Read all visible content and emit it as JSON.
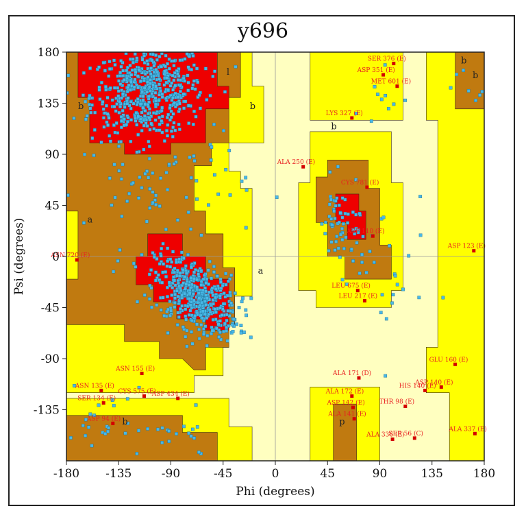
{
  "chart_data": {
    "type": "scatter",
    "title": "y696",
    "xlabel": "Phi (degrees)",
    "ylabel": "Psi (degrees)",
    "xlim": [
      -180,
      180
    ],
    "ylim": [
      -180,
      180
    ],
    "xticks": [
      -180,
      -135,
      -90,
      -45,
      0,
      45,
      90,
      135,
      180
    ],
    "yticks": [
      180,
      135,
      90,
      45,
      0,
      -45,
      -90,
      -135
    ],
    "grid": false,
    "colors": {
      "core": "#ee0000",
      "allowed": "#c07a10",
      "generous": "#ffff00",
      "outer": "#ffffc0",
      "point": "#49b8e6",
      "outlier": "#d40000",
      "outlier_label": "#e82020"
    },
    "region_labels": [
      "b",
      "a",
      "b",
      "b",
      "b",
      "b",
      "l",
      "b",
      "a",
      "p"
    ],
    "outliers": [
      {
        "label": "SER 376 (E)",
        "phi": 102,
        "psi": 170
      },
      {
        "label": "ASP 351 (E)",
        "phi": 93,
        "psi": 160
      },
      {
        "label": "MET 601 (E)",
        "phi": 105,
        "psi": 150
      },
      {
        "label": "LYS 327 (E)",
        "phi": 66,
        "psi": 122
      },
      {
        "label": "ALA 250 (E)",
        "phi": 24,
        "psi": 79
      },
      {
        "label": "CYS 781 (E)",
        "phi": 79,
        "psi": 61
      },
      {
        "label": "ASP 110 (E)",
        "phi": 84,
        "psi": 18
      },
      {
        "label": "ASP 123 (E)",
        "phi": 171,
        "psi": 5
      },
      {
        "label": "ASN 720 (E)",
        "phi": -171,
        "psi": -3
      },
      {
        "label": "LEU 675 (E)",
        "phi": 71,
        "psi": -30
      },
      {
        "label": "LEU 217 (E)",
        "phi": 77,
        "psi": -39
      },
      {
        "label": "GLU 160 (E)",
        "phi": 155,
        "psi": -95
      },
      {
        "label": "ALA 171 (D)",
        "phi": 72,
        "psi": -107
      },
      {
        "label": "ASN 155 (E)",
        "phi": -115,
        "psi": -103
      },
      {
        "label": "ASP 140 (E)",
        "phi": 143,
        "psi": -115
      },
      {
        "label": "HIS 140 (E)",
        "phi": 129,
        "psi": -118
      },
      {
        "label": "ALA 172 (E)",
        "phi": 66,
        "psi": -123
      },
      {
        "label": "ASN 135 (E)",
        "phi": -150,
        "psi": -118
      },
      {
        "label": "SER 134 (E)",
        "phi": -148,
        "psi": -129
      },
      {
        "label": "CYS 575 (E)",
        "phi": -113,
        "psi": -123
      },
      {
        "label": "ASP 434 (E)",
        "phi": -84,
        "psi": -125
      },
      {
        "label": "THR 98 (E)",
        "phi": 112,
        "psi": -132
      },
      {
        "label": "ASP 142 (E)",
        "phi": 67,
        "psi": -133
      },
      {
        "label": "ALA 141 (E)",
        "phi": 68,
        "psi": -143
      },
      {
        "label": "ASP 94 (E)",
        "phi": -140,
        "psi": -147
      },
      {
        "label": "ALA 336 (E)",
        "phi": 101,
        "psi": -161
      },
      {
        "label": "SER 56 (C)",
        "phi": 120,
        "psi": -160
      },
      {
        "label": "ALA 337 (E)",
        "phi": 172,
        "psi": -156
      }
    ]
  }
}
